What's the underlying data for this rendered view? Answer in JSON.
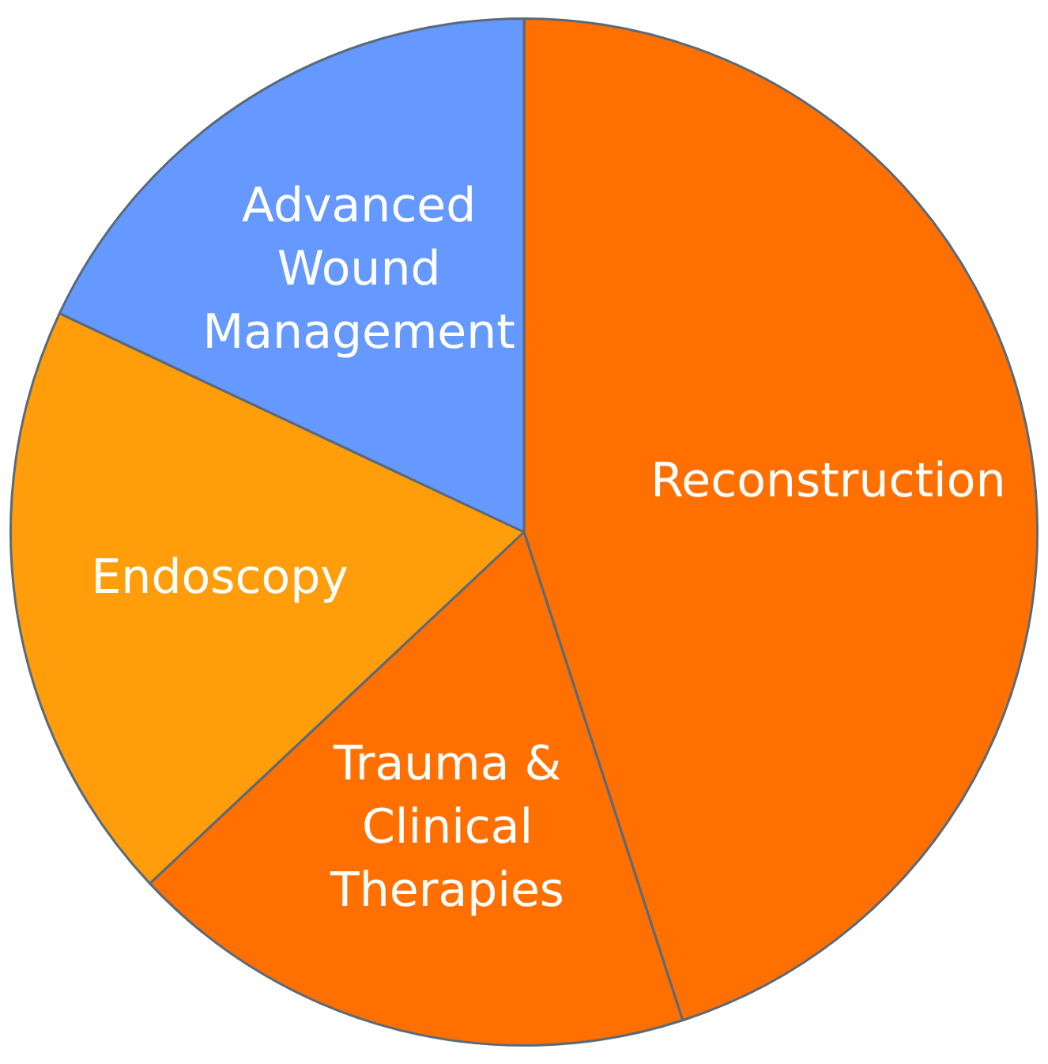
{
  "chart_data": {
    "type": "pie",
    "categories": [
      "Reconstruction",
      "Trauma & Clinical Therapies",
      "Endoscopy",
      "Advanced Wound Management"
    ],
    "values": [
      45,
      18,
      19,
      18
    ],
    "colors": [
      "#ff7000",
      "#ff7000",
      "#ff9d0a",
      "#6699ff"
    ],
    "legend": false
  }
}
